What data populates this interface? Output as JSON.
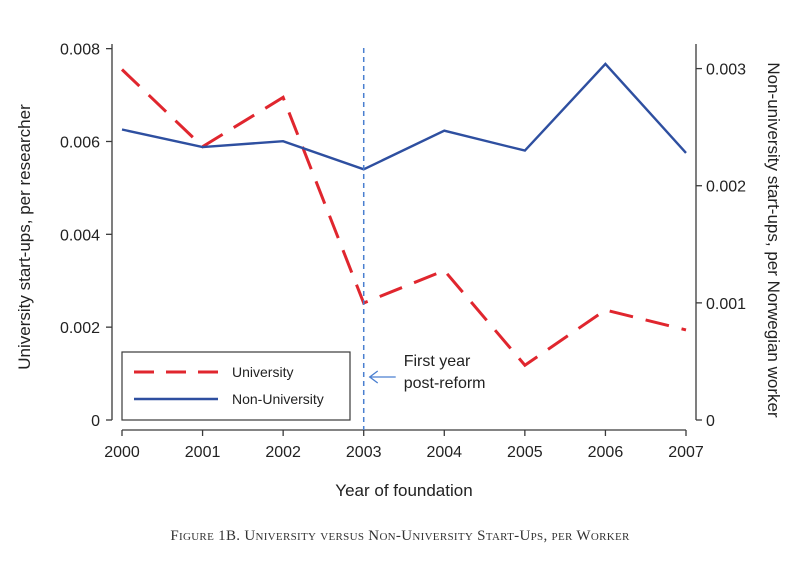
{
  "caption": "Figure 1B. University versus Non-University Start-Ups, per Worker",
  "chart_data": {
    "type": "line",
    "title": "",
    "xlabel": "Year of foundation",
    "ylabel_left": "University start-ups, per researcher",
    "ylabel_right": "Non-university start-ups, per Norwegian worker",
    "x": [
      2000,
      2001,
      2002,
      2003,
      2004,
      2005,
      2006,
      2007
    ],
    "x_ticks": [
      "2000",
      "2001",
      "2002",
      "2003",
      "2004",
      "2005",
      "2006",
      "2007"
    ],
    "y_left_ticks": [
      "0",
      "0.002",
      "0.004",
      "0.006",
      "0.008"
    ],
    "y_left_tick_values": [
      0,
      0.002,
      0.004,
      0.006,
      0.008
    ],
    "y_right_ticks": [
      "0",
      "0.001",
      "0.002",
      "0.003"
    ],
    "y_right_tick_values": [
      0,
      0.001,
      0.002,
      0.003
    ],
    "xlim": [
      2000,
      2007
    ],
    "ylim_left": [
      0,
      0.0081
    ],
    "ylim_right": [
      0,
      0.00321
    ],
    "grid": false,
    "legend_position": "bottom-left",
    "series": [
      {
        "name": "University",
        "axis": "left",
        "style": "dashed",
        "color": "#e0262e",
        "values": [
          0.00755,
          0.00589,
          0.00695,
          0.00252,
          0.00322,
          0.00118,
          0.00237,
          0.00194
        ]
      },
      {
        "name": "Non-University",
        "axis": "right",
        "style": "solid",
        "color": "#2e4fa0",
        "values": [
          0.00248,
          0.00233,
          0.00238,
          0.00214,
          0.00247,
          0.0023,
          0.00304,
          0.00228
        ]
      }
    ],
    "reference_line": {
      "x": 2003,
      "color": "#4a7fd0",
      "style": "dashed"
    },
    "annotation": {
      "lines": [
        "First year",
        "post-reform"
      ],
      "arrow": true,
      "color": "#4a7fd0"
    }
  }
}
